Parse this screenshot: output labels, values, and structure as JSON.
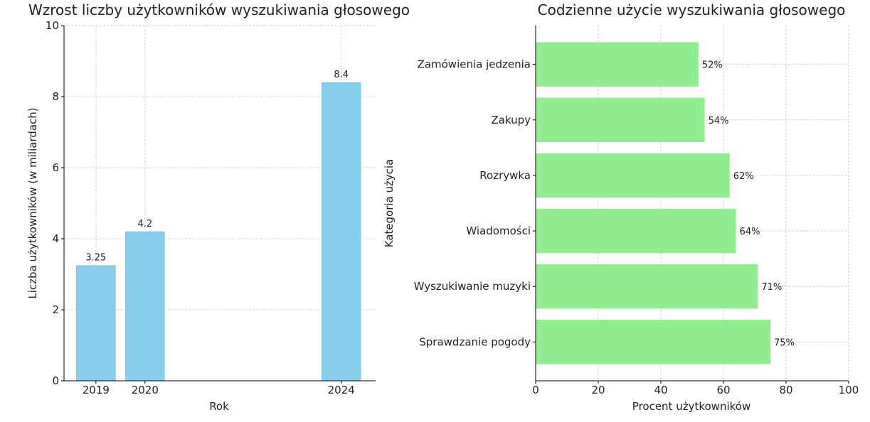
{
  "chart_data": [
    {
      "type": "bar",
      "orientation": "vertical",
      "title": "Wzrost liczby użytkowników wyszukiwania głosowego",
      "xlabel": "Rok",
      "ylabel": "Liczba użytkowników (w miliardach)",
      "x": [
        2019,
        2020,
        2024
      ],
      "values": [
        3.25,
        4.2,
        8.4
      ],
      "data_labels": [
        "3.25",
        "4.2",
        "8.4"
      ],
      "xticks": [
        "2019",
        "2020",
        "2024"
      ],
      "yticks": [
        0,
        2,
        4,
        6,
        8,
        10
      ],
      "ylim": [
        0,
        10
      ],
      "grid": true,
      "color": "#87CEEB"
    },
    {
      "type": "bar",
      "orientation": "horizontal",
      "title": "Codzienne użycie wyszukiwania głosowego",
      "xlabel": "Procent użytkowników",
      "ylabel": "Kategoria użycia",
      "categories": [
        "Sprawdzanie pogody",
        "Wyszukiwanie muzyki",
        "Wiadomości",
        "Rozrywka",
        "Zakupy",
        "Zamówienia jedzenia"
      ],
      "values": [
        75,
        71,
        64,
        62,
        54,
        52
      ],
      "data_labels": [
        "75%",
        "71%",
        "64%",
        "62%",
        "54%",
        "52%"
      ],
      "xticks": [
        0,
        20,
        40,
        60,
        80,
        100
      ],
      "xlim": [
        0,
        100
      ],
      "grid": true,
      "color": "#90EE90"
    }
  ]
}
